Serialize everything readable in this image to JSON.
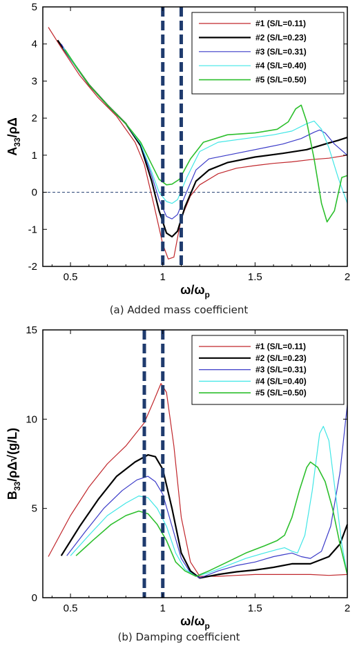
{
  "colors": {
    "s1": "#c0262b",
    "s2": "#000000",
    "s3": "#3a3ac8",
    "s4": "#3fe6e6",
    "s5": "#2cbf2c",
    "marker": "#1f3b6e"
  },
  "chart_data": [
    {
      "type": "line",
      "caption": "(a) Added mass coefficient",
      "ylabel_main": "A",
      "ylabel_sub": "33",
      "ylabel_rest": "/ρΔ",
      "xlabel_main": "ω/ω",
      "xlabel_sub": "p",
      "xlim": [
        0.35,
        2.0
      ],
      "ylim": [
        -2,
        5
      ],
      "xticks": [
        0.5,
        1,
        1.5,
        2
      ],
      "xtick_labels": [
        "0.5",
        "1",
        "1.5",
        "2"
      ],
      "yticks": [
        -2,
        -1,
        0,
        1,
        2,
        3,
        4,
        5
      ],
      "ytick_labels": [
        "-2",
        "-1",
        "0",
        "1",
        "2",
        "3",
        "4",
        "5"
      ],
      "vlines": [
        1.0,
        1.1
      ],
      "hline": 0,
      "grid": false,
      "legend_position": "top-right",
      "series": [
        {
          "name": "#1 (S/L=0.11)",
          "color": "s1",
          "width": 1.2,
          "points": [
            [
              0.38,
              4.45
            ],
            [
              0.45,
              3.9
            ],
            [
              0.55,
              3.15
            ],
            [
              0.65,
              2.55
            ],
            [
              0.75,
              2.05
            ],
            [
              0.85,
              1.35
            ],
            [
              0.9,
              0.75
            ],
            [
              0.95,
              -0.3
            ],
            [
              1.0,
              -1.4
            ],
            [
              1.03,
              -1.8
            ],
            [
              1.06,
              -1.75
            ],
            [
              1.1,
              -0.7
            ],
            [
              1.15,
              -0.1
            ],
            [
              1.2,
              0.2
            ],
            [
              1.3,
              0.5
            ],
            [
              1.4,
              0.65
            ],
            [
              1.5,
              0.72
            ],
            [
              1.6,
              0.78
            ],
            [
              1.7,
              0.82
            ],
            [
              1.8,
              0.88
            ],
            [
              1.9,
              0.92
            ],
            [
              2.0,
              1.0
            ]
          ]
        },
        {
          "name": "#2 (S/L=0.23)",
          "color": "s2",
          "width": 2.2,
          "points": [
            [
              0.43,
              4.1
            ],
            [
              0.5,
              3.6
            ],
            [
              0.6,
              2.9
            ],
            [
              0.7,
              2.35
            ],
            [
              0.8,
              1.85
            ],
            [
              0.88,
              1.25
            ],
            [
              0.94,
              0.3
            ],
            [
              0.98,
              -0.5
            ],
            [
              1.02,
              -1.1
            ],
            [
              1.05,
              -1.2
            ],
            [
              1.08,
              -1.05
            ],
            [
              1.12,
              -0.4
            ],
            [
              1.18,
              0.3
            ],
            [
              1.25,
              0.6
            ],
            [
              1.35,
              0.8
            ],
            [
              1.5,
              0.95
            ],
            [
              1.65,
              1.05
            ],
            [
              1.78,
              1.15
            ],
            [
              1.88,
              1.3
            ],
            [
              1.95,
              1.4
            ],
            [
              2.0,
              1.48
            ]
          ]
        },
        {
          "name": "#3 (S/L=0.31)",
          "color": "s3",
          "width": 1.2,
          "points": [
            [
              0.45,
              4.0
            ],
            [
              0.5,
              3.6
            ],
            [
              0.6,
              2.9
            ],
            [
              0.7,
              2.35
            ],
            [
              0.8,
              1.85
            ],
            [
              0.88,
              1.3
            ],
            [
              0.94,
              0.45
            ],
            [
              0.98,
              -0.2
            ],
            [
              1.02,
              -0.65
            ],
            [
              1.05,
              -0.72
            ],
            [
              1.08,
              -0.6
            ],
            [
              1.12,
              -0.1
            ],
            [
              1.18,
              0.6
            ],
            [
              1.25,
              0.9
            ],
            [
              1.4,
              1.05
            ],
            [
              1.55,
              1.2
            ],
            [
              1.65,
              1.3
            ],
            [
              1.75,
              1.45
            ],
            [
              1.82,
              1.62
            ],
            [
              1.85,
              1.68
            ],
            [
              1.88,
              1.6
            ],
            [
              1.93,
              1.3
            ],
            [
              2.0,
              1.0
            ]
          ]
        },
        {
          "name": "#4 (S/L=0.40)",
          "color": "s4",
          "width": 1.2,
          "points": [
            [
              0.46,
              3.9
            ],
            [
              0.52,
              3.45
            ],
            [
              0.6,
              2.9
            ],
            [
              0.7,
              2.35
            ],
            [
              0.8,
              1.85
            ],
            [
              0.88,
              1.3
            ],
            [
              0.94,
              0.55
            ],
            [
              0.98,
              0.0
            ],
            [
              1.02,
              -0.25
            ],
            [
              1.05,
              -0.3
            ],
            [
              1.08,
              -0.2
            ],
            [
              1.13,
              0.4
            ],
            [
              1.2,
              1.1
            ],
            [
              1.3,
              1.35
            ],
            [
              1.45,
              1.45
            ],
            [
              1.6,
              1.55
            ],
            [
              1.7,
              1.65
            ],
            [
              1.78,
              1.85
            ],
            [
              1.82,
              1.92
            ],
            [
              1.86,
              1.7
            ],
            [
              1.9,
              1.2
            ],
            [
              1.95,
              0.4
            ],
            [
              2.0,
              -0.3
            ]
          ]
        },
        {
          "name": "#5 (S/L=0.50)",
          "color": "s5",
          "width": 1.6,
          "points": [
            [
              0.47,
              3.85
            ],
            [
              0.53,
              3.4
            ],
            [
              0.6,
              2.9
            ],
            [
              0.7,
              2.35
            ],
            [
              0.8,
              1.85
            ],
            [
              0.88,
              1.35
            ],
            [
              0.94,
              0.75
            ],
            [
              0.98,
              0.35
            ],
            [
              1.02,
              0.2
            ],
            [
              1.05,
              0.22
            ],
            [
              1.09,
              0.35
            ],
            [
              1.15,
              0.9
            ],
            [
              1.22,
              1.35
            ],
            [
              1.35,
              1.55
            ],
            [
              1.5,
              1.6
            ],
            [
              1.62,
              1.7
            ],
            [
              1.68,
              1.9
            ],
            [
              1.72,
              2.25
            ],
            [
              1.75,
              2.35
            ],
            [
              1.78,
              1.9
            ],
            [
              1.82,
              0.9
            ],
            [
              1.86,
              -0.3
            ],
            [
              1.89,
              -0.8
            ],
            [
              1.93,
              -0.5
            ],
            [
              1.97,
              0.4
            ],
            [
              2.0,
              0.45
            ]
          ]
        }
      ]
    },
    {
      "type": "line",
      "caption": "(b) Damping coefficient",
      "ylabel_main": "B",
      "ylabel_sub": "33",
      "ylabel_rest": "/ρΔ√(g/L)",
      "xlabel_main": "ω/ω",
      "xlabel_sub": "p",
      "xlim": [
        0.35,
        2.0
      ],
      "ylim": [
        0,
        15
      ],
      "xticks": [
        0.5,
        1,
        1.5,
        2
      ],
      "xtick_labels": [
        "0.5",
        "1",
        "1.5",
        "2"
      ],
      "yticks": [
        0,
        5,
        10,
        15
      ],
      "ytick_labels": [
        "0",
        "5",
        "10",
        "15"
      ],
      "vlines": [
        0.9,
        1.0
      ],
      "grid": false,
      "legend_position": "top-right",
      "series": [
        {
          "name": "#1 (S/L=0.11)",
          "color": "s1",
          "width": 1.2,
          "points": [
            [
              0.38,
              2.3
            ],
            [
              0.5,
              4.6
            ],
            [
              0.6,
              6.2
            ],
            [
              0.7,
              7.5
            ],
            [
              0.8,
              8.5
            ],
            [
              0.9,
              9.8
            ],
            [
              0.95,
              11.0
            ],
            [
              0.99,
              12.0
            ],
            [
              1.02,
              11.5
            ],
            [
              1.06,
              8.5
            ],
            [
              1.1,
              4.5
            ],
            [
              1.15,
              2.0
            ],
            [
              1.2,
              1.2
            ],
            [
              1.3,
              1.2
            ],
            [
              1.4,
              1.25
            ],
            [
              1.5,
              1.3
            ],
            [
              1.6,
              1.3
            ],
            [
              1.7,
              1.3
            ],
            [
              1.8,
              1.3
            ],
            [
              1.9,
              1.25
            ],
            [
              2.0,
              1.3
            ]
          ]
        },
        {
          "name": "#2 (S/L=0.23)",
          "color": "s2",
          "width": 2.2,
          "points": [
            [
              0.45,
              2.35
            ],
            [
              0.55,
              4.0
            ],
            [
              0.65,
              5.5
            ],
            [
              0.75,
              6.8
            ],
            [
              0.85,
              7.6
            ],
            [
              0.92,
              8.0
            ],
            [
              0.96,
              7.9
            ],
            [
              1.0,
              7.2
            ],
            [
              1.05,
              5.0
            ],
            [
              1.1,
              2.5
            ],
            [
              1.15,
              1.5
            ],
            [
              1.2,
              1.1
            ],
            [
              1.3,
              1.3
            ],
            [
              1.4,
              1.45
            ],
            [
              1.5,
              1.55
            ],
            [
              1.6,
              1.7
            ],
            [
              1.7,
              1.9
            ],
            [
              1.8,
              1.9
            ],
            [
              1.9,
              2.3
            ],
            [
              1.96,
              3.0
            ],
            [
              2.0,
              4.1
            ]
          ]
        },
        {
          "name": "#3 (S/L=0.31)",
          "color": "s3",
          "width": 1.2,
          "points": [
            [
              0.48,
              2.35
            ],
            [
              0.58,
              3.7
            ],
            [
              0.68,
              5.0
            ],
            [
              0.78,
              6.0
            ],
            [
              0.86,
              6.6
            ],
            [
              0.92,
              6.8
            ],
            [
              0.96,
              6.5
            ],
            [
              1.0,
              5.8
            ],
            [
              1.05,
              4.0
            ],
            [
              1.1,
              2.2
            ],
            [
              1.15,
              1.4
            ],
            [
              1.2,
              1.1
            ],
            [
              1.3,
              1.5
            ],
            [
              1.4,
              1.8
            ],
            [
              1.5,
              2.0
            ],
            [
              1.6,
              2.3
            ],
            [
              1.65,
              2.4
            ],
            [
              1.7,
              2.5
            ],
            [
              1.75,
              2.3
            ],
            [
              1.8,
              2.2
            ],
            [
              1.86,
              2.6
            ],
            [
              1.91,
              4.0
            ],
            [
              1.96,
              7.0
            ],
            [
              2.0,
              10.8
            ]
          ]
        },
        {
          "name": "#4 (S/L=0.40)",
          "color": "s4",
          "width": 1.2,
          "points": [
            [
              0.5,
              2.35
            ],
            [
              0.6,
              3.5
            ],
            [
              0.7,
              4.6
            ],
            [
              0.8,
              5.3
            ],
            [
              0.87,
              5.7
            ],
            [
              0.92,
              5.6
            ],
            [
              0.97,
              5.0
            ],
            [
              1.02,
              4.0
            ],
            [
              1.07,
              2.5
            ],
            [
              1.12,
              1.6
            ],
            [
              1.18,
              1.2
            ],
            [
              1.25,
              1.4
            ],
            [
              1.35,
              1.8
            ],
            [
              1.45,
              2.2
            ],
            [
              1.55,
              2.5
            ],
            [
              1.62,
              2.7
            ],
            [
              1.66,
              2.8
            ],
            [
              1.7,
              2.6
            ],
            [
              1.73,
              2.5
            ],
            [
              1.77,
              3.5
            ],
            [
              1.81,
              6.0
            ],
            [
              1.85,
              9.2
            ],
            [
              1.87,
              9.6
            ],
            [
              1.9,
              8.8
            ],
            [
              1.94,
              5.5
            ],
            [
              1.97,
              3.0
            ],
            [
              2.0,
              1.3
            ]
          ]
        },
        {
          "name": "#5 (S/L=0.50)",
          "color": "s5",
          "width": 1.6,
          "points": [
            [
              0.53,
              2.35
            ],
            [
              0.62,
              3.2
            ],
            [
              0.72,
              4.1
            ],
            [
              0.8,
              4.6
            ],
            [
              0.87,
              4.85
            ],
            [
              0.92,
              4.7
            ],
            [
              0.97,
              4.1
            ],
            [
              1.02,
              3.2
            ],
            [
              1.07,
              2.0
            ],
            [
              1.12,
              1.5
            ],
            [
              1.18,
              1.2
            ],
            [
              1.25,
              1.5
            ],
            [
              1.35,
              2.0
            ],
            [
              1.45,
              2.5
            ],
            [
              1.55,
              2.9
            ],
            [
              1.62,
              3.2
            ],
            [
              1.66,
              3.5
            ],
            [
              1.7,
              4.5
            ],
            [
              1.74,
              6.0
            ],
            [
              1.78,
              7.3
            ],
            [
              1.8,
              7.6
            ],
            [
              1.84,
              7.3
            ],
            [
              1.88,
              6.5
            ],
            [
              1.92,
              5.0
            ],
            [
              1.96,
              3.0
            ],
            [
              2.0,
              1.3
            ]
          ]
        }
      ]
    }
  ]
}
